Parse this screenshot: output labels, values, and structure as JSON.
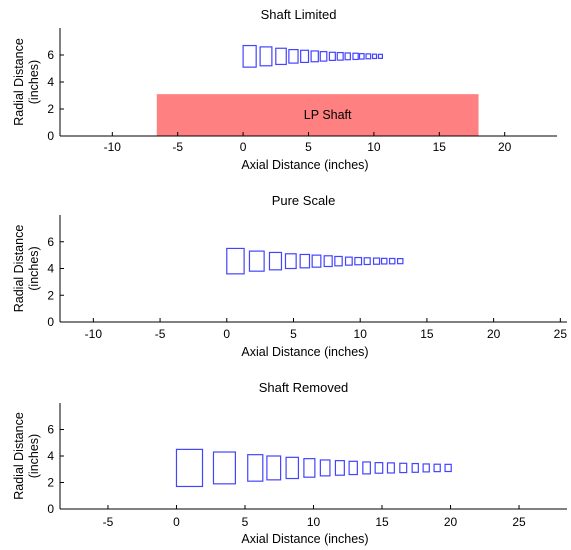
{
  "chart_data": [
    {
      "type": "box_outlines",
      "title": "Shaft Limited",
      "xlabel": "Axial Distance (inches)",
      "ylabel": [
        "Radial Distance",
        "(inches)"
      ],
      "xlim": [
        -14,
        24
      ],
      "ylim": [
        0,
        8
      ],
      "xticks": [
        -10,
        -5,
        0,
        5,
        10,
        15,
        20
      ],
      "yticks": [
        0,
        2,
        4,
        6
      ],
      "color": "#4444ff",
      "stages": [
        {
          "x": 0.0,
          "w": 1.0,
          "ylo": 5.1,
          "yhi": 6.7
        },
        {
          "x": 1.3,
          "w": 0.9,
          "ylo": 5.2,
          "yhi": 6.6
        },
        {
          "x": 2.5,
          "w": 0.8,
          "ylo": 5.3,
          "yhi": 6.5
        },
        {
          "x": 3.5,
          "w": 0.7,
          "ylo": 5.4,
          "yhi": 6.4
        },
        {
          "x": 4.4,
          "w": 0.6,
          "ylo": 5.45,
          "yhi": 6.35
        },
        {
          "x": 5.2,
          "w": 0.55,
          "ylo": 5.5,
          "yhi": 6.3
        },
        {
          "x": 5.9,
          "w": 0.5,
          "ylo": 5.55,
          "yhi": 6.25
        },
        {
          "x": 6.6,
          "w": 0.45,
          "ylo": 5.6,
          "yhi": 6.2
        },
        {
          "x": 7.2,
          "w": 0.45,
          "ylo": 5.62,
          "yhi": 6.18
        },
        {
          "x": 7.8,
          "w": 0.4,
          "ylo": 5.65,
          "yhi": 6.15
        },
        {
          "x": 8.4,
          "w": 0.4,
          "ylo": 5.67,
          "yhi": 6.13
        },
        {
          "x": 8.9,
          "w": 0.35,
          "ylo": 5.7,
          "yhi": 6.1
        },
        {
          "x": 9.4,
          "w": 0.35,
          "ylo": 5.72,
          "yhi": 6.08
        },
        {
          "x": 9.9,
          "w": 0.3,
          "ylo": 5.74,
          "yhi": 6.06
        },
        {
          "x": 10.35,
          "w": 0.3,
          "ylo": 5.75,
          "yhi": 6.05
        }
      ],
      "shaft": {
        "label": "LP Shaft",
        "x0": -6.6,
        "x1": 18.0,
        "y0": 0,
        "y1": 3.1,
        "color": "#ff8080"
      }
    },
    {
      "type": "box_outlines",
      "title": "Pure Scale",
      "xlabel": "Axial Distance (inches)",
      "ylabel": [
        "Radial Distance",
        "(inches)"
      ],
      "xlim": [
        -12.5,
        25.5
      ],
      "ylim": [
        0,
        8
      ],
      "xticks": [
        -10,
        -5,
        0,
        5,
        10,
        15,
        20,
        25
      ],
      "yticks": [
        0,
        2,
        4,
        6
      ],
      "color": "#4444ff",
      "stages": [
        {
          "x": 0.0,
          "w": 1.3,
          "ylo": 3.6,
          "yhi": 5.5
        },
        {
          "x": 1.7,
          "w": 1.1,
          "ylo": 3.8,
          "yhi": 5.3
        },
        {
          "x": 3.2,
          "w": 0.9,
          "ylo": 3.9,
          "yhi": 5.2
        },
        {
          "x": 4.4,
          "w": 0.8,
          "ylo": 4.0,
          "yhi": 5.1
        },
        {
          "x": 5.5,
          "w": 0.7,
          "ylo": 4.05,
          "yhi": 5.05
        },
        {
          "x": 6.4,
          "w": 0.65,
          "ylo": 4.1,
          "yhi": 5.0
        },
        {
          "x": 7.3,
          "w": 0.6,
          "ylo": 4.15,
          "yhi": 4.95
        },
        {
          "x": 8.1,
          "w": 0.55,
          "ylo": 4.2,
          "yhi": 4.9
        },
        {
          "x": 8.9,
          "w": 0.5,
          "ylo": 4.25,
          "yhi": 4.85
        },
        {
          "x": 9.6,
          "w": 0.5,
          "ylo": 4.28,
          "yhi": 4.82
        },
        {
          "x": 10.3,
          "w": 0.45,
          "ylo": 4.3,
          "yhi": 4.8
        },
        {
          "x": 11.0,
          "w": 0.45,
          "ylo": 4.32,
          "yhi": 4.78
        },
        {
          "x": 11.6,
          "w": 0.4,
          "ylo": 4.34,
          "yhi": 4.76
        },
        {
          "x": 12.2,
          "w": 0.4,
          "ylo": 4.35,
          "yhi": 4.75
        },
        {
          "x": 12.8,
          "w": 0.4,
          "ylo": 4.36,
          "yhi": 4.74
        }
      ]
    },
    {
      "type": "box_outlines",
      "title": "Shaft Removed",
      "xlabel": "Axial Distance (inches)",
      "ylabel": [
        "Radial Distance",
        "(inches)"
      ],
      "xlim": [
        -8.5,
        28.5
      ],
      "ylim": [
        0,
        8
      ],
      "xticks": [
        -5,
        0,
        5,
        10,
        15,
        20,
        25
      ],
      "yticks": [
        0,
        2,
        4,
        6
      ],
      "color": "#4444ff",
      "stages": [
        {
          "x": 0.0,
          "w": 1.9,
          "ylo": 1.7,
          "yhi": 4.5
        },
        {
          "x": 2.7,
          "w": 1.6,
          "ylo": 1.9,
          "yhi": 4.3
        },
        {
          "x": 5.2,
          "w": 1.1,
          "ylo": 2.1,
          "yhi": 4.1
        },
        {
          "x": 6.6,
          "w": 1.0,
          "ylo": 2.2,
          "yhi": 4.0
        },
        {
          "x": 8.0,
          "w": 0.9,
          "ylo": 2.3,
          "yhi": 3.9
        },
        {
          "x": 9.3,
          "w": 0.8,
          "ylo": 2.4,
          "yhi": 3.8
        },
        {
          "x": 10.5,
          "w": 0.7,
          "ylo": 2.5,
          "yhi": 3.7
        },
        {
          "x": 11.6,
          "w": 0.65,
          "ylo": 2.55,
          "yhi": 3.65
        },
        {
          "x": 12.6,
          "w": 0.6,
          "ylo": 2.6,
          "yhi": 3.6
        },
        {
          "x": 13.6,
          "w": 0.55,
          "ylo": 2.65,
          "yhi": 3.55
        },
        {
          "x": 14.5,
          "w": 0.55,
          "ylo": 2.7,
          "yhi": 3.5
        },
        {
          "x": 15.4,
          "w": 0.5,
          "ylo": 2.72,
          "yhi": 3.48
        },
        {
          "x": 16.3,
          "w": 0.5,
          "ylo": 2.75,
          "yhi": 3.45
        },
        {
          "x": 17.2,
          "w": 0.45,
          "ylo": 2.77,
          "yhi": 3.43
        },
        {
          "x": 18.0,
          "w": 0.45,
          "ylo": 2.8,
          "yhi": 3.4
        },
        {
          "x": 18.8,
          "w": 0.45,
          "ylo": 2.82,
          "yhi": 3.38
        },
        {
          "x": 19.6,
          "w": 0.45,
          "ylo": 2.83,
          "yhi": 3.37
        }
      ]
    }
  ]
}
